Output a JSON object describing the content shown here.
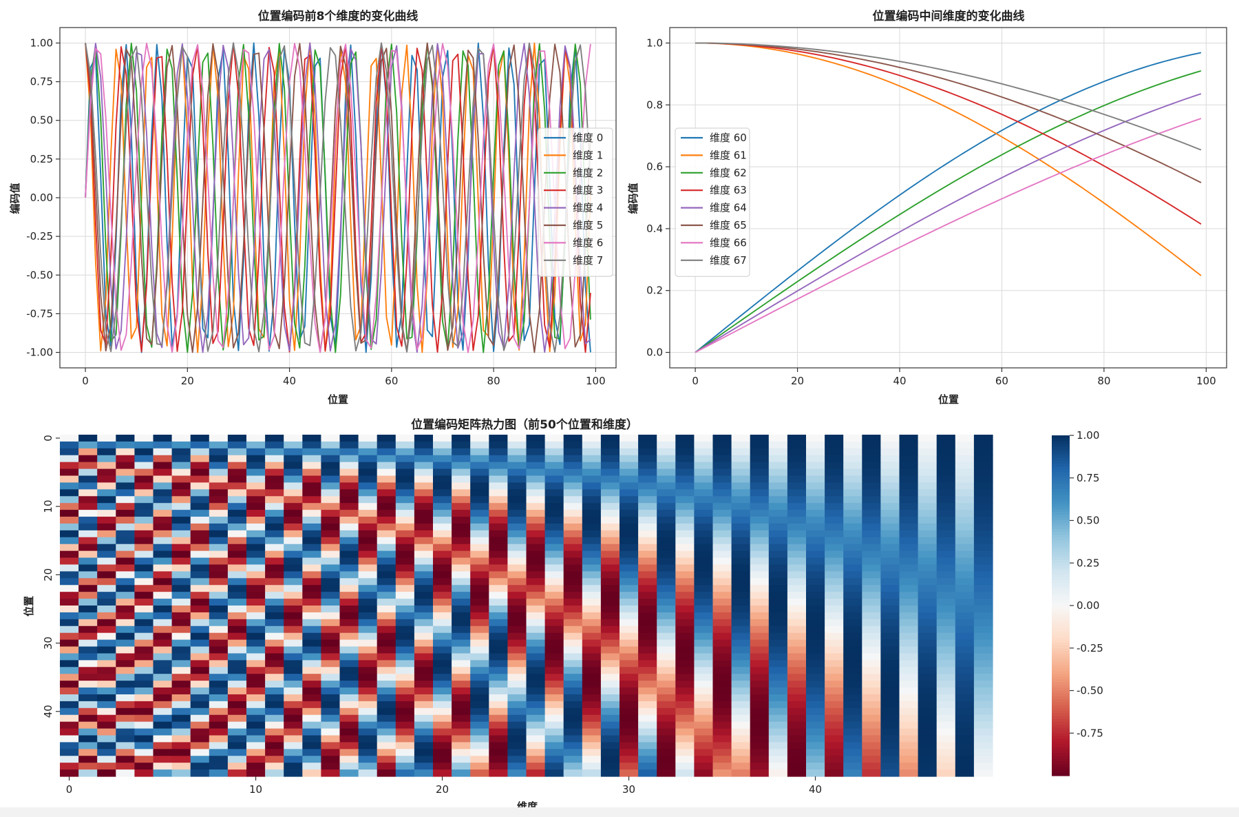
{
  "colors": {
    "series_palette": [
      "#1f77b4",
      "#ff7f0e",
      "#2ca02c",
      "#d62728",
      "#9467bd",
      "#8c564b",
      "#e377c2",
      "#7f7f7f"
    ],
    "heatmap_cmap": "RdBu_r",
    "heatmap_negative": "#67001f",
    "heatmap_zero": "#f7f7f7",
    "heatmap_positive": "#053061"
  },
  "chart_data": [
    {
      "id": "plot1",
      "type": "line",
      "title": "位置编码前8个维度的变化曲线",
      "xlabel": "位置",
      "ylabel": "编码值",
      "xlim": [
        -5,
        104
      ],
      "ylim": [
        -1.1,
        1.1
      ],
      "xticks": [
        0,
        20,
        40,
        60,
        80,
        100
      ],
      "xtick_labels": [
        "0",
        "20",
        "40",
        "60",
        "80",
        "100"
      ],
      "yticks": [
        1.0,
        0.75,
        0.5,
        0.25,
        0.0,
        -0.25,
        -0.5,
        -0.75,
        -1.0
      ],
      "ytick_labels": [
        "1.00",
        "0.75",
        "0.50",
        "0.25",
        "0.00",
        "-0.25",
        "-0.50",
        "-0.75",
        "-1.00"
      ],
      "grid": true,
      "legend_position": "right",
      "generator": "sinusoidal positional encoding, d_model = 128, positions 0–99",
      "x": {
        "start": 0,
        "end": 99,
        "step": 1
      },
      "series": [
        {
          "name": "维度 0",
          "dim": 0,
          "func": "sin"
        },
        {
          "name": "维度 1",
          "dim": 1,
          "func": "cos"
        },
        {
          "name": "维度 2",
          "dim": 2,
          "func": "sin"
        },
        {
          "name": "维度 3",
          "dim": 3,
          "func": "cos"
        },
        {
          "name": "维度 4",
          "dim": 4,
          "func": "sin"
        },
        {
          "name": "维度 5",
          "dim": 5,
          "func": "cos"
        },
        {
          "name": "维度 6",
          "dim": 6,
          "func": "sin"
        },
        {
          "name": "维度 7",
          "dim": 7,
          "func": "cos"
        }
      ]
    },
    {
      "id": "plot2",
      "type": "line",
      "title": "位置编码中间维度的变化曲线",
      "xlabel": "位置",
      "ylabel": "编码值",
      "xlim": [
        -5,
        104
      ],
      "ylim": [
        -0.05,
        1.05
      ],
      "xticks": [
        0,
        20,
        40,
        60,
        80,
        100
      ],
      "xtick_labels": [
        "0",
        "20",
        "40",
        "60",
        "80",
        "100"
      ],
      "yticks": [
        0.0,
        0.2,
        0.4,
        0.6,
        0.8,
        1.0
      ],
      "ytick_labels": [
        "0.0",
        "0.2",
        "0.4",
        "0.6",
        "0.8",
        "1.0"
      ],
      "grid": true,
      "legend_position": "center-left",
      "generator": "sinusoidal positional encoding, d_model = 128, positions 0–99",
      "x": {
        "start": 0,
        "end": 99,
        "step": 1
      },
      "series": [
        {
          "name": "维度 60",
          "dim": 60,
          "func": "sin"
        },
        {
          "name": "维度 61",
          "dim": 61,
          "func": "cos"
        },
        {
          "name": "维度 62",
          "dim": 62,
          "func": "sin"
        },
        {
          "name": "维度 63",
          "dim": 63,
          "func": "cos"
        },
        {
          "name": "维度 64",
          "dim": 64,
          "func": "sin"
        },
        {
          "name": "维度 65",
          "dim": 65,
          "func": "cos"
        },
        {
          "name": "维度 66",
          "dim": 66,
          "func": "sin"
        },
        {
          "name": "维度 67",
          "dim": 67,
          "func": "cos"
        }
      ]
    },
    {
      "id": "plot3",
      "type": "heatmap",
      "title": "位置编码矩阵热力图（前50个位置和维度）",
      "xlabel": "维度",
      "ylabel": "位置",
      "rows": 50,
      "cols": 50,
      "generator": "sinusoidal positional encoding, d_model = 128, positions 0–49, dimensions 0–49",
      "xticks": [
        0,
        10,
        20,
        30,
        40
      ],
      "xtick_labels": [
        "0",
        "10",
        "20",
        "30",
        "40"
      ],
      "yticks": [
        0,
        10,
        20,
        30,
        40
      ],
      "ytick_labels": [
        "0",
        "10",
        "20",
        "30",
        "40"
      ],
      "vmin": -1.0,
      "vmax": 1.0,
      "colorbar_ticks": [
        1.0,
        0.75,
        0.5,
        0.25,
        0.0,
        -0.25,
        -0.5,
        -0.75
      ],
      "colorbar_tick_labels": [
        "1.00",
        "0.75",
        "0.50",
        "0.25",
        "0.00",
        "-0.25",
        "-0.50",
        "-0.75"
      ]
    }
  ]
}
